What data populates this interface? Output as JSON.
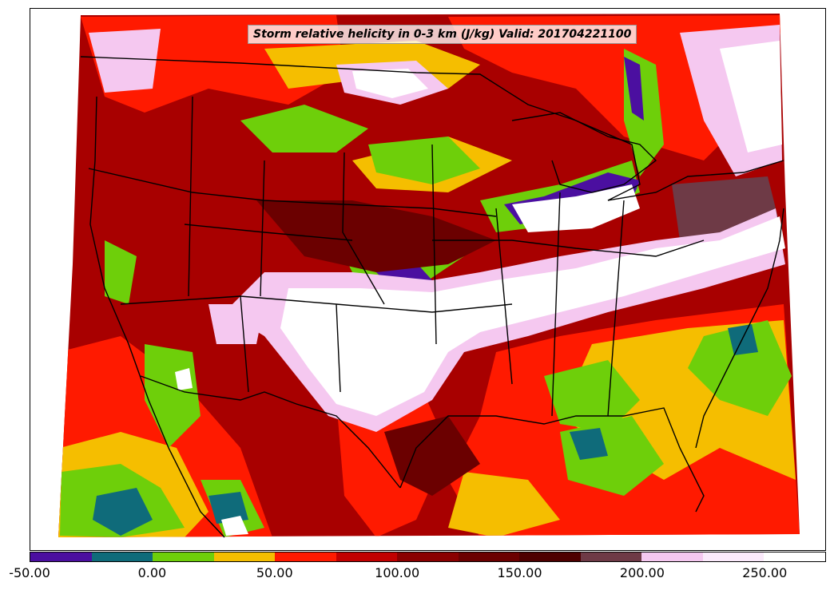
{
  "title": "Storm relative helicity in 0-3 km (J/kg) Valid: 201704221100",
  "colorbar": {
    "colors": [
      "#4b0fa0",
      "#0f6b7a",
      "#6ecf0a",
      "#f5be00",
      "#ff1a00",
      "#c10000",
      "#8a0000",
      "#6b0000",
      "#4e0000",
      "#6e3a46",
      "#f5c8f0",
      "#fbeafb",
      "#ffffff"
    ],
    "labels": [
      {
        "text": "-50.00",
        "value": -50
      },
      {
        "text": "0.00",
        "value": 0
      },
      {
        "text": "50.00",
        "value": 50
      },
      {
        "text": "100.00",
        "value": 100
      },
      {
        "text": "150.00",
        "value": 150
      },
      {
        "text": "200.00",
        "value": 200
      },
      {
        "text": "250.00",
        "value": 250
      }
    ],
    "min": -50,
    "max": 275
  },
  "map": {
    "region": "CONUS",
    "fill_colors": {
      "purple": "#4b0fa0",
      "teal": "#0f6b7a",
      "green": "#6ecf0a",
      "yellow": "#f5be00",
      "red": "#ff1a00",
      "darkred": "#a80000",
      "maroon": "#6b0000",
      "mauve": "#6e3a46",
      "pink": "#f5c8f0",
      "white": "#ffffff"
    }
  }
}
